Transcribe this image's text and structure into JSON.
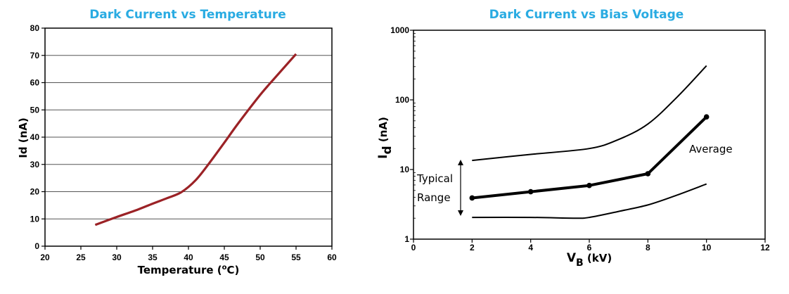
{
  "chart_data": [
    {
      "type": "line",
      "title": "Dark Current vs Temperature",
      "xlabel": "Temperature (°C)",
      "xlabel_parts": {
        "main": "Temperature (",
        "sup": "o",
        "unit": "C)"
      },
      "ylabel": "Id (nA)",
      "xlim": [
        20,
        60
      ],
      "ylim": [
        0,
        80
      ],
      "x_ticks": [
        "20",
        "25",
        "30",
        "35",
        "40",
        "45",
        "50",
        "55",
        "60"
      ],
      "y_ticks": [
        "0",
        "10",
        "20",
        "30",
        "40",
        "50",
        "60",
        "70",
        "80"
      ],
      "grid": "horizontal",
      "series": [
        {
          "color": "#9b2226",
          "x": [
            27,
            30,
            33,
            35,
            37,
            39,
            41,
            43,
            45,
            47,
            50,
            52,
            55
          ],
          "y": [
            7.8,
            10.7,
            13.5,
            15.6,
            17.6,
            19.8,
            24.2,
            30.8,
            38.0,
            45.3,
            55.5,
            61.6,
            70.5
          ]
        }
      ]
    },
    {
      "type": "line",
      "title": "Dark Current vs Bias Voltage",
      "xlabel": "VB (kV)",
      "xlabel_parts": {
        "main": "V",
        "sub": "B",
        "unit": " (kV)"
      },
      "ylabel": "Id (nA)",
      "ylabel_parts": {
        "main": "I",
        "sub": "d",
        "unit": " (nA)"
      },
      "xlim": [
        0,
        12
      ],
      "ylim": [
        1,
        1000
      ],
      "yscale": "log",
      "x_ticks": [
        "0",
        "2",
        "4",
        "6",
        "8",
        "10",
        "12"
      ],
      "y_ticks": [
        "1",
        "10",
        "100",
        "1000"
      ],
      "grid": "horizontal",
      "series": [
        {
          "role": "upper",
          "color": "#000000",
          "x": [
            2,
            4,
            6,
            7,
            8,
            9,
            10
          ],
          "y": [
            13.5,
            16.5,
            20,
            27,
            45,
            110,
            310
          ]
        },
        {
          "role": "average",
          "color": "#000000",
          "markers": true,
          "x": [
            2,
            4,
            6,
            8,
            10
          ],
          "y": [
            3.9,
            4.8,
            5.9,
            8.7,
            57
          ]
        },
        {
          "role": "lower",
          "color": "#000000",
          "x": [
            2,
            4,
            5.5,
            6,
            7,
            8,
            9,
            10
          ],
          "y": [
            2.05,
            2.05,
            2.0,
            2.05,
            2.5,
            3.1,
            4.3,
            6.2
          ]
        }
      ],
      "annotations": {
        "average": "Average",
        "range_line1": "Typical",
        "range_line2": "Range"
      }
    }
  ]
}
